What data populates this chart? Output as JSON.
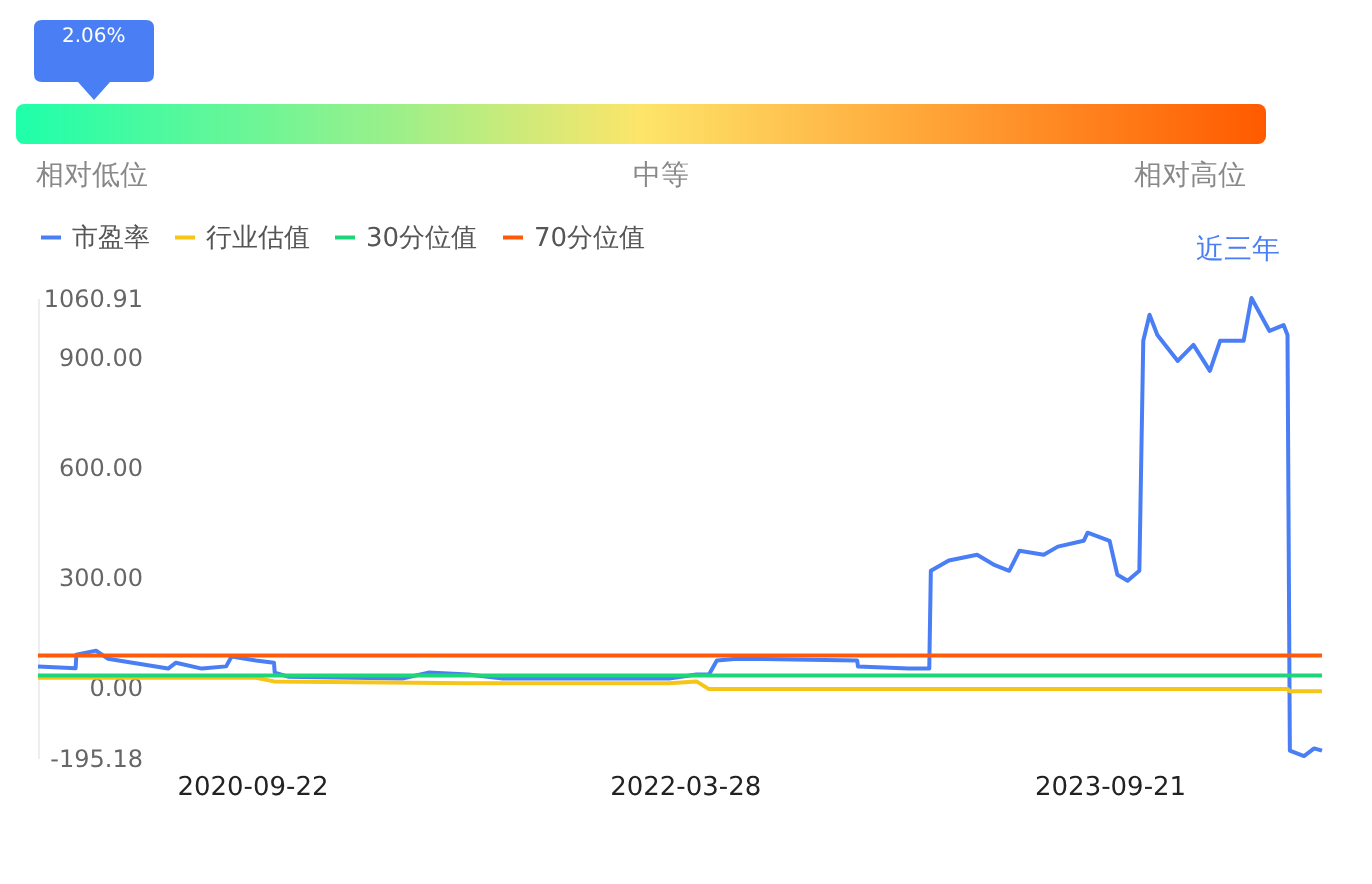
{
  "chart_data": [
    {
      "type": "other",
      "annotations": [
        "2.06%",
        "相对低位",
        "中等",
        "相对高位"
      ]
    },
    {
      "type": "line",
      "legend": "top left",
      "annotations": [
        "近三年"
      ],
      "xlim": [
        "2019-12-24",
        "2024-06-18"
      ],
      "xticks": [
        {
          "value": "2020-09-22",
          "label": "2020-09-22"
        },
        {
          "value": "2022-03-28",
          "label": "2022-03-28"
        },
        {
          "value": "2023-09-21",
          "label": "2023-09-21"
        }
      ],
      "ylim": [
        -195.18,
        1060.91
      ],
      "yticks": [
        {
          "value": -195.18,
          "label": "-195.18"
        },
        {
          "value": 0,
          "label": "0.00"
        },
        {
          "value": 300,
          "label": "300.00"
        },
        {
          "value": 600,
          "label": "600.00"
        },
        {
          "value": 900,
          "label": "900.00"
        },
        {
          "value": 1060.91,
          "label": "1060.91"
        }
      ],
      "grid": false,
      "series": [
        {
          "name": "市盈率",
          "color": "#4a7ef5",
          "x": [
            "2019-12-24",
            "2020-02-10",
            "2020-02-11",
            "2020-03-07",
            "2020-03-22",
            "2020-06-07",
            "2020-06-17",
            "2020-07-20",
            "2020-08-20",
            "2020-08-27",
            "2020-09-27",
            "2020-10-20",
            "2020-10-21",
            "2020-11-07",
            "2021-04-02",
            "2021-05-05",
            "2021-06-25",
            "2021-08-08",
            "2022-03-08",
            "2022-04-12",
            "2022-04-28",
            "2022-05-08",
            "2022-06-03",
            "2022-11-03",
            "2022-11-04",
            "2023-01-08",
            "2023-02-03",
            "2023-02-05",
            "2023-02-28",
            "2023-04-05",
            "2023-04-26",
            "2023-05-16",
            "2023-05-29",
            "2023-06-29",
            "2023-07-17",
            "2023-08-19",
            "2023-08-24",
            "2023-09-21",
            "2023-10-01",
            "2023-10-14",
            "2023-10-29",
            "2023-11-03",
            "2023-11-11",
            "2023-11-21",
            "2023-12-17",
            "2024-01-06",
            "2024-01-27",
            "2024-02-09",
            "2024-03-10",
            "2024-03-20",
            "2024-04-12",
            "2024-04-30",
            "2024-05-05",
            "2024-05-08",
            "2024-05-26",
            "2024-06-08",
            "2024-06-18"
          ],
          "values": [
            55,
            50,
            87,
            98,
            76,
            49,
            65,
            49,
            55,
            82,
            71,
            65,
            38,
            27,
            22,
            38,
            33,
            22,
            22,
            33,
            33,
            71,
            76,
            71,
            55,
            49,
            49,
            316,
            344,
            360,
            333,
            316,
            371,
            360,
            382,
            398,
            420,
            398,
            305,
            289,
            316,
            944,
            1015,
            960,
            889,
            933,
            862,
            944,
            944,
            1060.91,
            971,
            987,
            960,
            -175,
            -190,
            -169,
            -175
          ]
        },
        {
          "name": "行业估值",
          "color": "#f5c518",
          "x": [
            "2019-12-24",
            "2020-09-27",
            "2020-10-20",
            "2021-06-25",
            "2022-03-08",
            "2022-04-12",
            "2022-04-28",
            "2024-05-05",
            "2024-05-08",
            "2024-06-18"
          ],
          "values": [
            24,
            24,
            14,
            9,
            9,
            14,
            -7,
            -7,
            -13,
            -13
          ]
        },
        {
          "name": "30分位值",
          "color": "#1ed67a",
          "x": [
            "2019-12-24",
            "2024-06-18"
          ],
          "values": [
            30,
            30
          ]
        },
        {
          "name": "70分位值",
          "color": "#ff5a0a",
          "x": [
            "2019-12-24",
            "2024-06-18"
          ],
          "values": [
            85,
            85
          ]
        }
      ]
    }
  ]
}
